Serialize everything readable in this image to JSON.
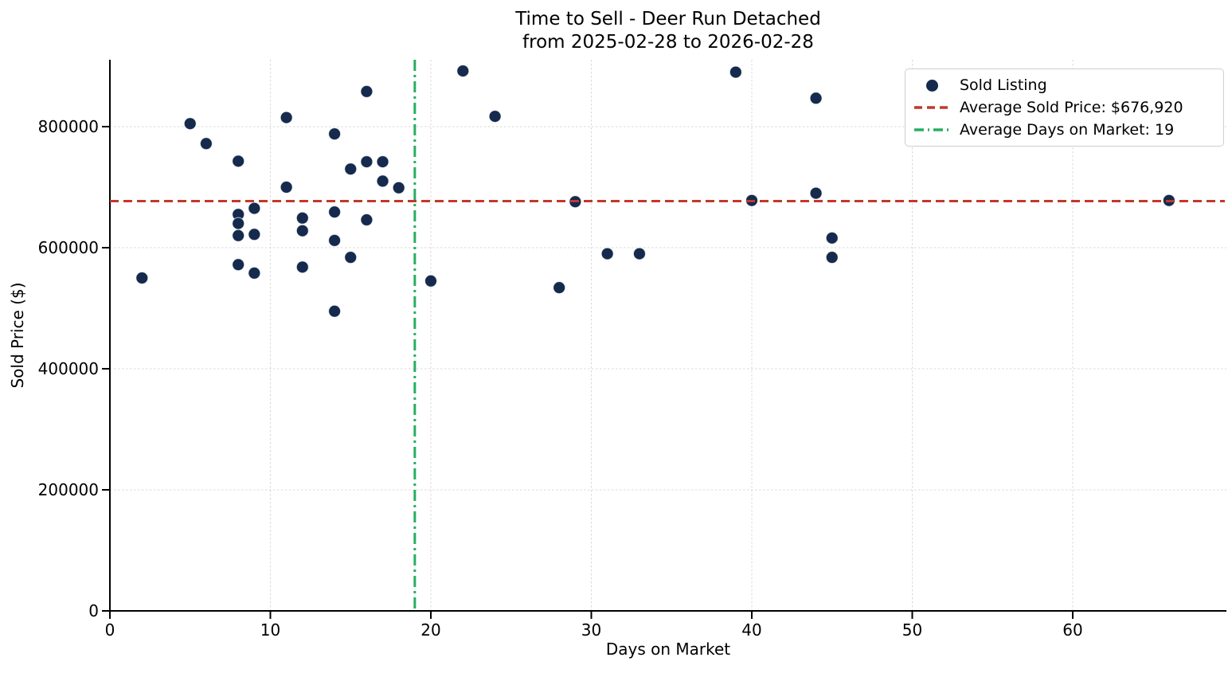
{
  "title": {
    "line1": "Time to Sell - Deer Run Detached",
    "line2": "from 2025-02-28 to 2026-02-28"
  },
  "axes": {
    "x_label": "Days on Market",
    "y_label": "Sold Price ($)"
  },
  "legend": [
    {
      "marker": "scatter-dot",
      "label": "Sold Listing"
    },
    {
      "marker": "dashed-line",
      "label": "Average Sold Price: $676,920"
    },
    {
      "marker": "dashdot-line",
      "label": "Average Days on Market: 19"
    }
  ],
  "colors": {
    "dot": "#152a4c",
    "avg_price_line": "#c0392b",
    "avg_days_line": "#27ae60"
  },
  "chart_data": {
    "type": "scatter",
    "title": "Time to Sell - Deer Run Detached from 2025-02-28 to 2026-02-28",
    "xlabel": "Days on Market",
    "ylabel": "Sold Price ($)",
    "x_ticks": [
      0,
      10,
      20,
      30,
      40,
      50,
      60
    ],
    "y_ticks": [
      0,
      200000,
      400000,
      600000,
      800000
    ],
    "xlim": [
      0,
      69.5
    ],
    "ylim": [
      0,
      910000
    ],
    "grid": true,
    "legend_position": "upper right",
    "series": [
      {
        "name": "Sold Listing",
        "color": "#152a4c",
        "points": [
          [
            2,
            550000
          ],
          [
            5,
            805000
          ],
          [
            6,
            772000
          ],
          [
            8,
            743000
          ],
          [
            8,
            655000
          ],
          [
            8,
            640000
          ],
          [
            8,
            620000
          ],
          [
            8,
            572000
          ],
          [
            9,
            665000
          ],
          [
            9,
            622000
          ],
          [
            9,
            558000
          ],
          [
            11,
            815000
          ],
          [
            11,
            700000
          ],
          [
            12,
            649000
          ],
          [
            12,
            628000
          ],
          [
            12,
            568000
          ],
          [
            14,
            788000
          ],
          [
            14,
            659000
          ],
          [
            14,
            612000
          ],
          [
            14,
            495000
          ],
          [
            15,
            730000
          ],
          [
            15,
            584000
          ],
          [
            16,
            858000
          ],
          [
            16,
            742000
          ],
          [
            16,
            646000
          ],
          [
            17,
            742000
          ],
          [
            17,
            710000
          ],
          [
            18,
            699000
          ],
          [
            20,
            545000
          ],
          [
            22,
            892000
          ],
          [
            24,
            817000
          ],
          [
            28,
            534000
          ],
          [
            29,
            676000
          ],
          [
            31,
            590000
          ],
          [
            33,
            590000
          ],
          [
            39,
            890000
          ],
          [
            40,
            678000
          ],
          [
            44,
            847000
          ],
          [
            44,
            690000
          ],
          [
            45,
            616000
          ],
          [
            45,
            584000
          ],
          [
            66,
            678000
          ]
        ]
      }
    ],
    "reference_lines": [
      {
        "name": "Average Sold Price",
        "orientation": "horizontal",
        "value": 676920,
        "style": "dashed",
        "color": "#c0392b"
      },
      {
        "name": "Average Days on Market",
        "orientation": "vertical",
        "value": 19,
        "style": "dashdot",
        "color": "#27ae60"
      }
    ]
  }
}
